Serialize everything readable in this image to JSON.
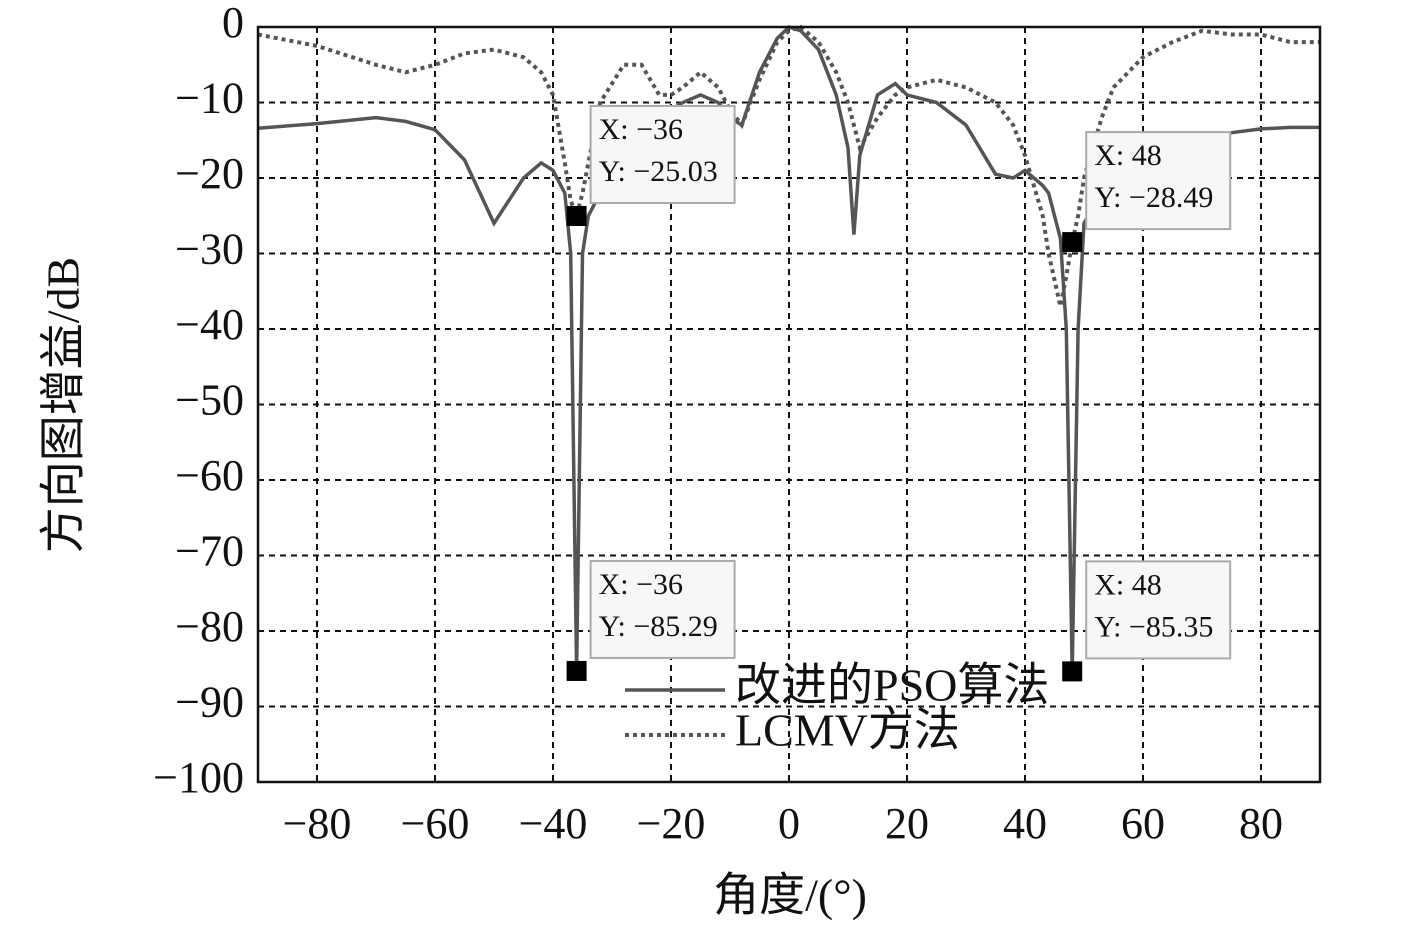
{
  "chart_data": {
    "type": "line",
    "xlabel": "角度/(°)",
    "ylabel": "方向图增益/dB",
    "x": [
      -90,
      -80,
      -70,
      -65,
      -60,
      -55,
      -50,
      -45,
      -42,
      -40,
      -38,
      -37,
      -36,
      -35,
      -34,
      -32,
      -28,
      -25,
      -22,
      -20,
      -18,
      -15,
      -12,
      -10,
      -8,
      -5,
      -2,
      0,
      2,
      5,
      8,
      10,
      11,
      12,
      15,
      18,
      20,
      25,
      30,
      35,
      38,
      40,
      43,
      44,
      46,
      47,
      48,
      49,
      50,
      53,
      55,
      60,
      65,
      70,
      75,
      80,
      85,
      90
    ],
    "series": [
      {
        "name": "改进的PSO算法",
        "color": "#555555",
        "dash": false,
        "values": [
          -13.4,
          -12.8,
          -12,
          -12.5,
          -13.6,
          -17.6,
          -26,
          -20,
          -18,
          -19,
          -22,
          -30,
          -85.29,
          -30,
          -25,
          -22,
          -18,
          -15,
          -12,
          -11,
          -10,
          -9,
          -10,
          -12,
          -13,
          -6,
          -1.5,
          0,
          -0.5,
          -3,
          -9,
          -16,
          -27.5,
          -17,
          -9,
          -7.5,
          -9,
          -10,
          -13,
          -19.5,
          -20,
          -19,
          -21,
          -22,
          -28,
          -40,
          -85.35,
          -40,
          -26,
          -22,
          -20,
          -17,
          -16,
          -15,
          -14,
          -13.5,
          -13.3,
          -13.3
        ]
      },
      {
        "name": "LCMV方法",
        "color": "#555555",
        "dash": true,
        "values": [
          -1,
          -2.5,
          -5,
          -6,
          -5,
          -3.5,
          -3,
          -4,
          -6,
          -9,
          -18,
          -23,
          -25.03,
          -22,
          -18,
          -10,
          -5,
          -5,
          -9,
          -9,
          -8,
          -6,
          -8,
          -11,
          -13,
          -7,
          -2,
          -0.5,
          0,
          -2,
          -6,
          -10,
          -13,
          -16,
          -12,
          -9,
          -8,
          -7,
          -8,
          -10,
          -13,
          -17,
          -25,
          -30,
          -37,
          -33,
          -28.49,
          -25,
          -20,
          -12,
          -8,
          -4,
          -2,
          -0.5,
          -1,
          -1,
          -2,
          -2
        ]
      }
    ],
    "xlim": [
      -90,
      90
    ],
    "ylim": [
      -100,
      0
    ],
    "xticks": [
      {
        "value": -80,
        "label": "−80"
      },
      {
        "value": -60,
        "label": "−60"
      },
      {
        "value": -40,
        "label": "−40"
      },
      {
        "value": -20,
        "label": "−20"
      },
      0,
      20,
      40,
      60,
      80
    ],
    "yticks": [
      0,
      {
        "value": -10,
        "label": "−10"
      },
      {
        "value": -20,
        "label": "−20"
      },
      {
        "value": -30,
        "label": "−30"
      },
      {
        "value": -40,
        "label": "−40"
      },
      {
        "value": -50,
        "label": "−50"
      },
      {
        "value": -60,
        "label": "−60"
      },
      {
        "value": -70,
        "label": "−70"
      },
      {
        "value": -80,
        "label": "−80"
      },
      {
        "value": -90,
        "label": "−90"
      },
      {
        "value": -100,
        "label": "−100"
      }
    ],
    "grid": true,
    "legend": "lower center",
    "annotations": [
      {
        "x": -36,
        "y": -25.03,
        "text_x": "X: −36",
        "text_y": "Y: −25.03"
      },
      {
        "x": -36,
        "y": -85.29,
        "text_x": "X: −36",
        "text_y": "Y: −85.29"
      },
      {
        "x": 48,
        "y": -28.49,
        "text_x": "X: 48",
        "text_y": "Y: −28.49"
      },
      {
        "x": 48,
        "y": -85.35,
        "text_x": "X: 48",
        "text_y": "Y: −85.35"
      }
    ]
  }
}
